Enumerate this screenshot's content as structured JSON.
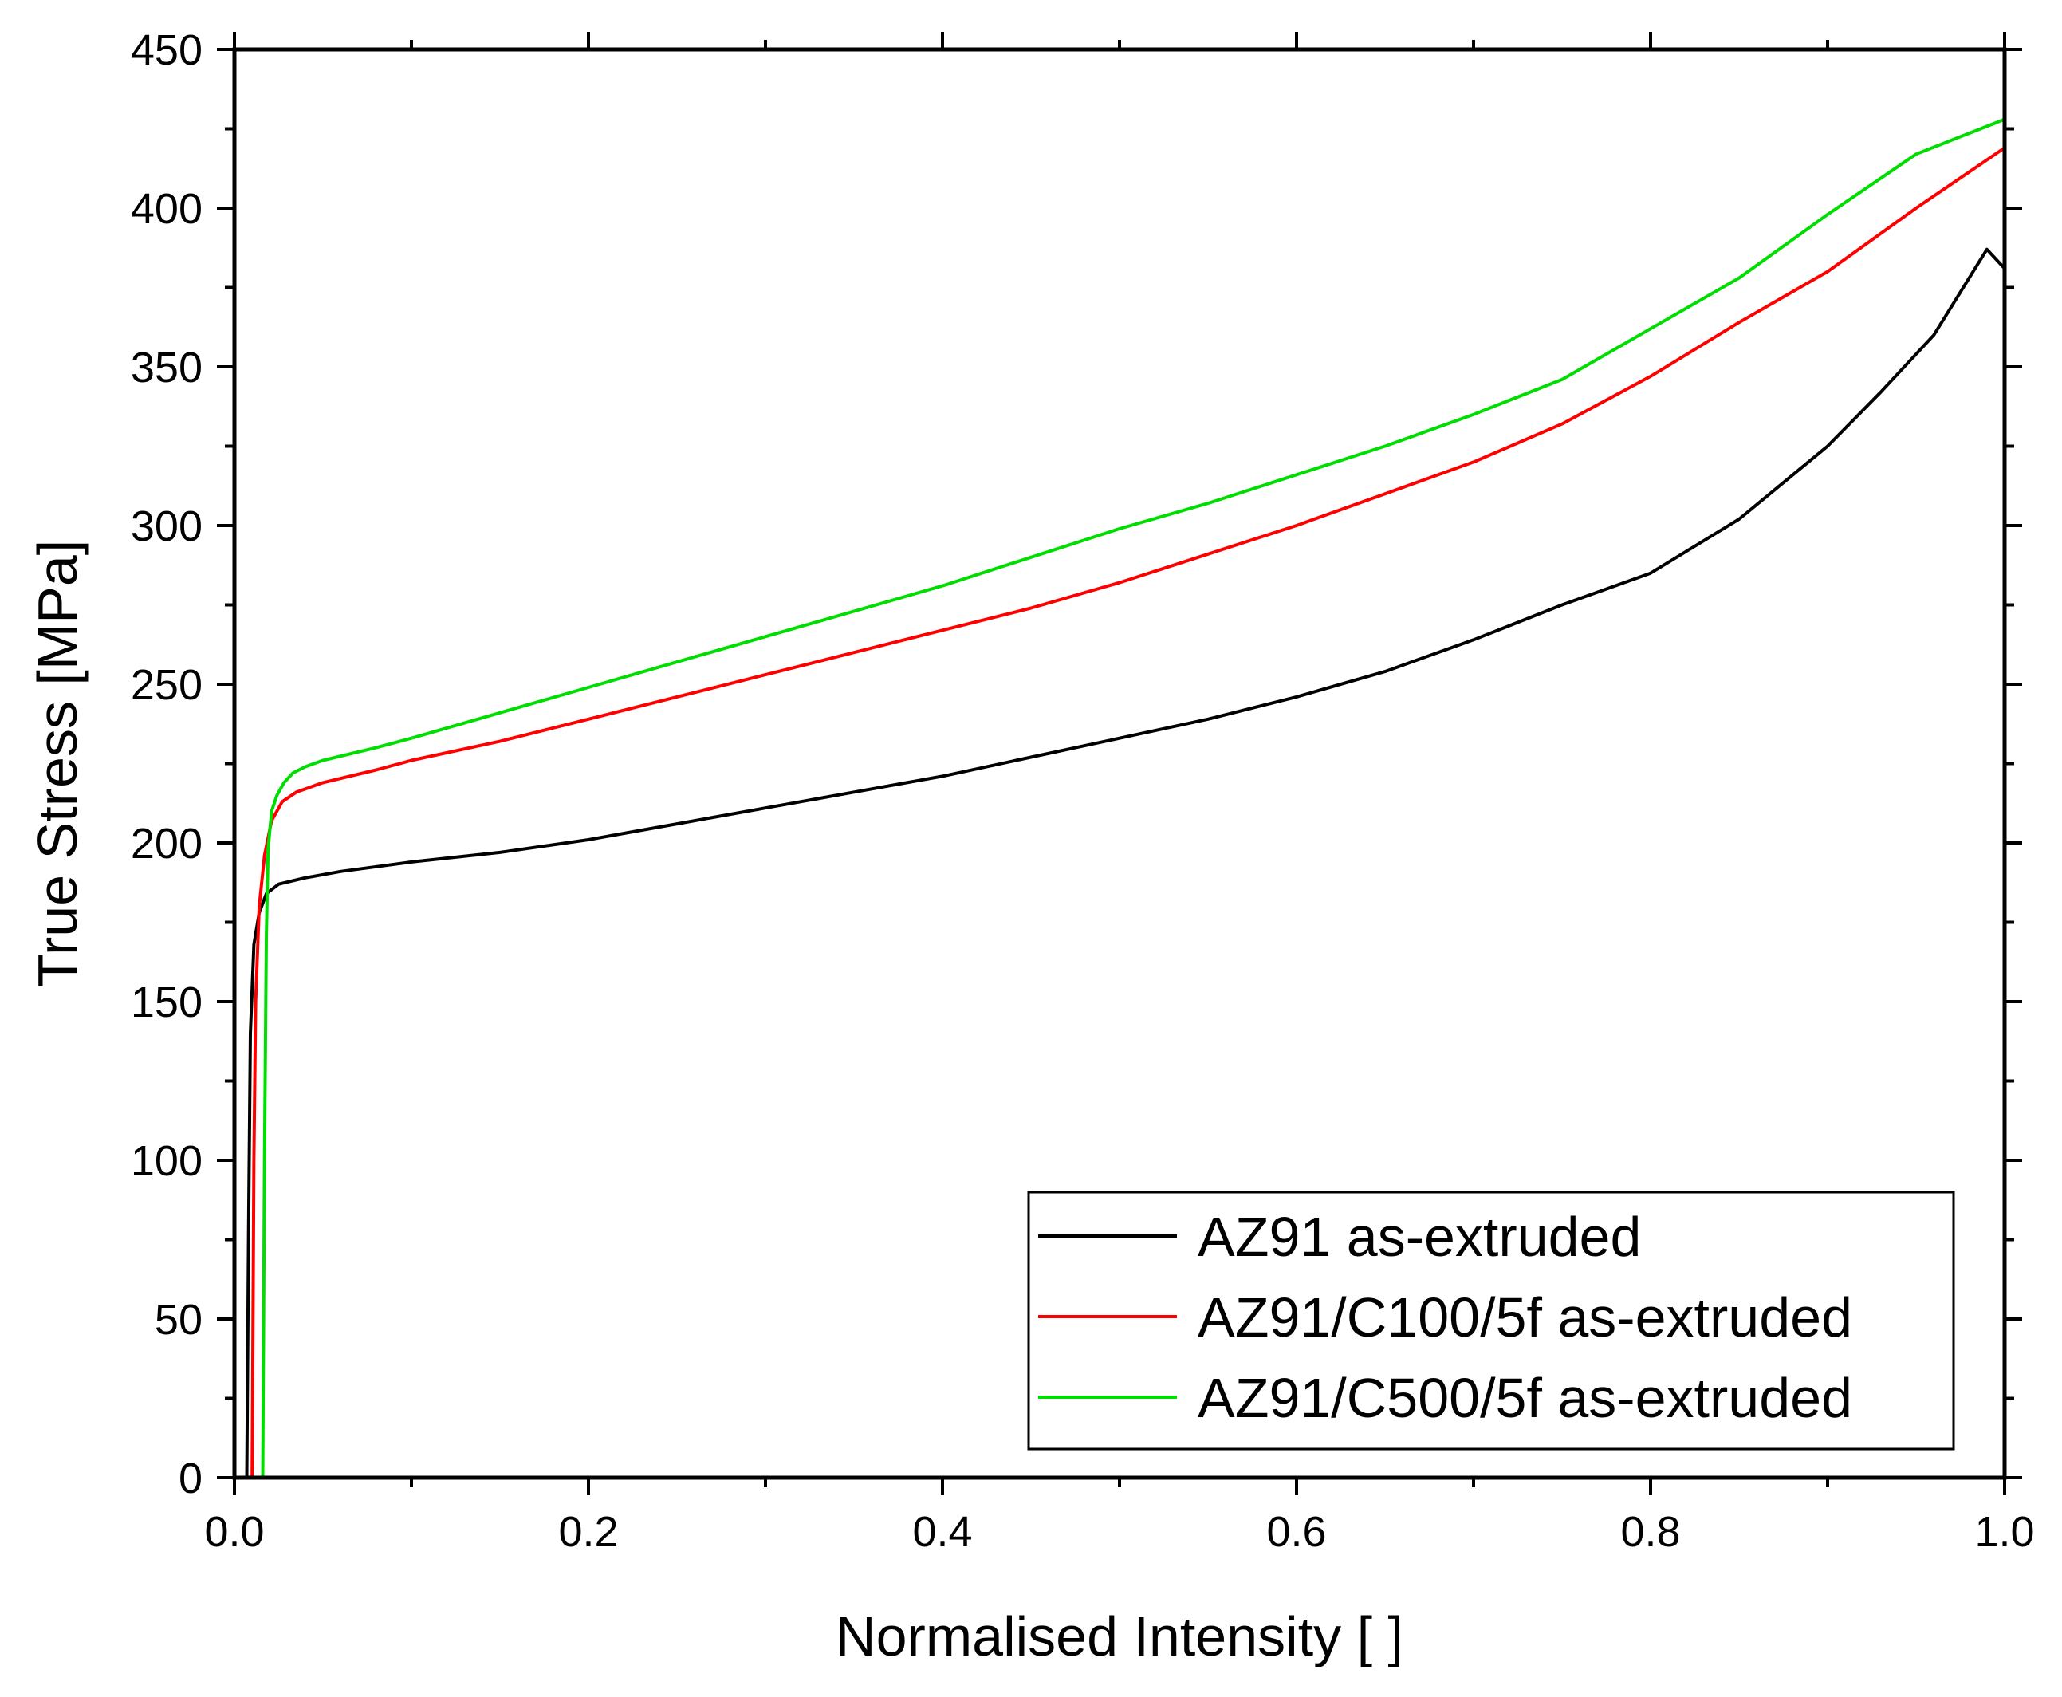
{
  "chart_data": {
    "type": "line",
    "title": "",
    "xlabel": "Normalised Intensity [ ]",
    "ylabel": "True Stress [MPa]",
    "xlim": [
      0.0,
      1.0
    ],
    "ylim": [
      0,
      450
    ],
    "x_ticks": [
      0.0,
      0.2,
      0.4,
      0.6,
      0.8,
      1.0
    ],
    "x_tick_labels": [
      "0.0",
      "0.2",
      "0.4",
      "0.6",
      "0.8",
      "1.0"
    ],
    "y_ticks": [
      0,
      50,
      100,
      150,
      200,
      250,
      300,
      350,
      400,
      450
    ],
    "y_tick_labels": [
      "0",
      "50",
      "100",
      "150",
      "200",
      "250",
      "300",
      "350",
      "400",
      "450"
    ],
    "grid": false,
    "legend_position": "bottom-right",
    "series": [
      {
        "name": "AZ91 as-extruded",
        "color": "#000000",
        "x": [
          0.007,
          0.008,
          0.009,
          0.011,
          0.014,
          0.018,
          0.025,
          0.04,
          0.06,
          0.1,
          0.15,
          0.2,
          0.25,
          0.3,
          0.35,
          0.4,
          0.45,
          0.5,
          0.55,
          0.6,
          0.65,
          0.7,
          0.75,
          0.8,
          0.85,
          0.9,
          0.93,
          0.96,
          0.98,
          0.99,
          1.0
        ],
        "values": [
          0,
          80,
          140,
          168,
          178,
          184,
          187,
          189,
          191,
          194,
          197,
          201,
          206,
          211,
          216,
          221,
          227,
          233,
          239,
          246,
          254,
          264,
          275,
          285,
          302,
          325,
          342,
          360,
          378,
          387,
          381
        ]
      },
      {
        "name": "AZ91/C100/5f as-extruded",
        "color": "#ff0000",
        "x": [
          0.01,
          0.011,
          0.012,
          0.014,
          0.017,
          0.021,
          0.027,
          0.035,
          0.05,
          0.08,
          0.1,
          0.15,
          0.2,
          0.25,
          0.3,
          0.35,
          0.4,
          0.45,
          0.5,
          0.55,
          0.6,
          0.65,
          0.7,
          0.75,
          0.8,
          0.85,
          0.9,
          0.95,
          1.0
        ],
        "values": [
          0,
          100,
          150,
          180,
          196,
          207,
          213,
          216,
          219,
          223,
          226,
          232,
          239,
          246,
          253,
          260,
          267,
          274,
          282,
          291,
          300,
          310,
          320,
          332,
          347,
          364,
          380,
          400,
          419
        ]
      },
      {
        "name": "AZ91/C500/5f as-extruded",
        "color": "#00dd00",
        "x": [
          0.016,
          0.017,
          0.018,
          0.019,
          0.021,
          0.024,
          0.028,
          0.033,
          0.04,
          0.05,
          0.08,
          0.1,
          0.15,
          0.2,
          0.25,
          0.3,
          0.35,
          0.4,
          0.45,
          0.5,
          0.55,
          0.6,
          0.65,
          0.7,
          0.75,
          0.8,
          0.85,
          0.9,
          0.95,
          1.0
        ],
        "values": [
          0,
          100,
          170,
          198,
          210,
          215,
          219,
          222,
          224,
          226,
          230,
          233,
          241,
          249,
          257,
          265,
          273,
          281,
          290,
          299,
          307,
          316,
          325,
          335,
          346,
          362,
          378,
          398,
          417,
          428
        ]
      }
    ]
  }
}
